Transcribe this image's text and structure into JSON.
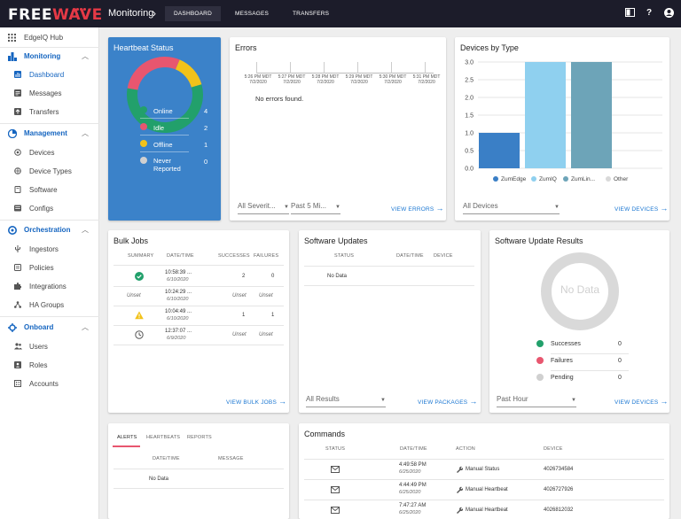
{
  "topbar": {
    "logo_main": "FREE",
    "logo_accent": "WAVE",
    "breadcrumb": "Monitoring",
    "tabs": [
      "DASHBOARD",
      "MESSAGES",
      "TRANSFERS"
    ],
    "help": "?"
  },
  "sidebar": {
    "hub": "EdgeIQ Hub",
    "monitoring": "Monitoring",
    "dashboard": "Dashboard",
    "messages": "Messages",
    "transfers": "Transfers",
    "management": "Management",
    "devices": "Devices",
    "device_types": "Device Types",
    "software": "Software",
    "configs": "Configs",
    "orchestration": "Orchestration",
    "ingestors": "Ingestors",
    "policies": "Policies",
    "integrations": "Integrations",
    "ha_groups": "HA Groups",
    "onboard": "Onboard",
    "users": "Users",
    "roles": "Roles",
    "accounts": "Accounts"
  },
  "heartbeat": {
    "title": "Heartbeat Status",
    "rows": [
      {
        "name": "Online",
        "count": "4",
        "color": "#22a06b"
      },
      {
        "name": "Idle",
        "count": "2",
        "color": "#e8566f"
      },
      {
        "name": "Offline",
        "count": "1",
        "color": "#f2c21a"
      },
      {
        "name": "Never Reported",
        "count": "0",
        "color": "#d0d0d0"
      }
    ]
  },
  "errors": {
    "title": "Errors",
    "times": [
      "5:26 PM MDT",
      "5:27 PM MDT",
      "5:28 PM MDT",
      "5:29 PM MDT",
      "5:30 PM MDT",
      "5:31 PM MDT"
    ],
    "dates": [
      "7/2/2020",
      "7/2/2020",
      "7/2/2020",
      "7/2/2020",
      "7/2/2020",
      "7/2/2020"
    ],
    "empty": "No errors found.",
    "select1": "All Severit...",
    "select2": "Past 5 Mi...",
    "link": "VIEW ERRORS"
  },
  "devices_by_type": {
    "title": "Devices by Type",
    "select": "All Devices",
    "link": "VIEW DEVICES",
    "legend": [
      "ZumEdge",
      "ZumIQ",
      "ZumLin...",
      "Other"
    ]
  },
  "chart_data": {
    "type": "bar",
    "categories": [
      "ZumEdge",
      "ZumIQ",
      "ZumLin...",
      "Other"
    ],
    "values": [
      1,
      3,
      3,
      0
    ],
    "colors": [
      "#3a7fc6",
      "#8fd0ef",
      "#6da4b8",
      "#d9d9d9"
    ],
    "ylim": [
      0,
      3
    ],
    "yticks": [
      "0.0",
      "0.5",
      "1.0",
      "1.5",
      "2.0",
      "2.5",
      "3.0"
    ],
    "grid": true,
    "legend": "bottom"
  },
  "bulk_jobs": {
    "title": "Bulk Jobs",
    "headers": [
      "SUMMARY",
      "DATE/TIME",
      "SUCCESSES",
      "FAILURES"
    ],
    "rows": [
      {
        "time": "10:58:39 ...",
        "date": "6/10/2020",
        "s": "2",
        "f": "0",
        "icon": "check"
      },
      {
        "summary": "Unset",
        "time": "10:24:29 ...",
        "date": "6/10/2020",
        "s": "Unset",
        "f": "Unset"
      },
      {
        "time": "10:04:49 ...",
        "date": "6/10/2020",
        "s": "1",
        "f": "1",
        "icon": "warning"
      },
      {
        "time": "12:37:07 ...",
        "date": "6/9/2020",
        "s": "Unset",
        "f": "Unset",
        "icon": "clock"
      }
    ],
    "link": "VIEW BULK JOBS"
  },
  "software_updates": {
    "title": "Software Updates",
    "headers": [
      "STATUS",
      "DATE/TIME",
      "DEVICE"
    ],
    "empty": "No Data",
    "select": "All Results",
    "link": "VIEW PACKAGES"
  },
  "sur": {
    "title": "Software Update Results",
    "center": "No Data",
    "rows": [
      {
        "name": "Successes",
        "count": "0",
        "color": "#22a06b"
      },
      {
        "name": "Failures",
        "count": "0",
        "color": "#e8566f"
      },
      {
        "name": "Pending",
        "count": "0",
        "color": "#d0d0d0"
      }
    ],
    "select": "Past Hour",
    "link": "VIEW DEVICES"
  },
  "alerts": {
    "tabs": [
      "ALERTS",
      "HEARTBEATS",
      "REPORTS"
    ],
    "headers": [
      "DATE/TIME",
      "MESSAGE"
    ],
    "empty": "No Data"
  },
  "commands": {
    "title": "Commands",
    "headers": [
      "STATUS",
      "DATE/TIME",
      "ACTION",
      "DEVICE"
    ],
    "rows": [
      {
        "time": "4:49:58 PM",
        "date": "6/25/2020",
        "action": "Manual Status",
        "device": "4026734584"
      },
      {
        "time": "4:44:49 PM",
        "date": "6/25/2020",
        "action": "Manual Heartbeat",
        "device": "4026727926"
      },
      {
        "time": "7:47:27 AM",
        "date": "6/25/2020",
        "action": "Manual Heartbeat",
        "device": "4026812032"
      }
    ]
  }
}
